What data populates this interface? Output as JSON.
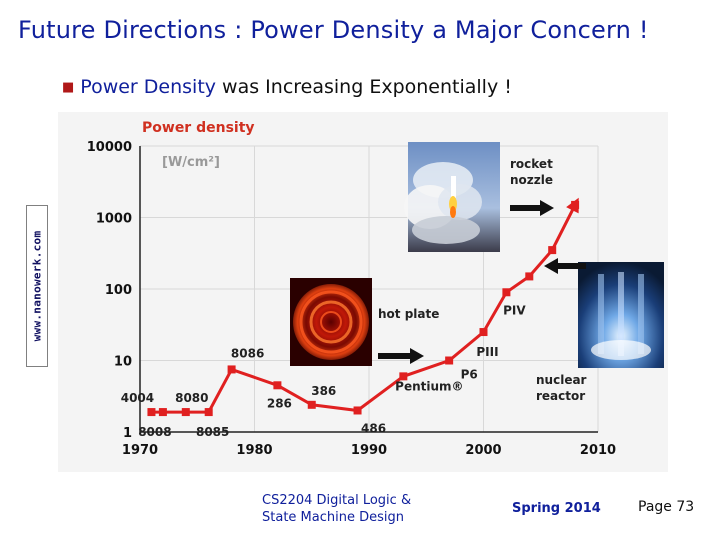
{
  "slide": {
    "title": "Future Directions : Power Density a Major Concern !",
    "bullet": {
      "prefix": "Power Density",
      "rest": " was Increasing Exponentially !"
    },
    "source_watermark": "www.nanowerk.com",
    "footer": {
      "course_line1": "CS2204 Digital Logic &",
      "course_line2": "State Machine Design",
      "term": "Spring 2014",
      "page": "Page 73"
    }
  },
  "chart_data": {
    "type": "line",
    "title": "Power density",
    "ylabel": "[W/cm²]",
    "xlabel": "",
    "y_scale": "log",
    "ylim": [
      1,
      10000
    ],
    "xlim": [
      1970,
      2010
    ],
    "x_ticks": [
      "1970",
      "1980",
      "1990",
      "2000",
      "2010"
    ],
    "y_ticks": [
      "1",
      "10",
      "100",
      "1000",
      "10000"
    ],
    "series": [
      {
        "name": "Processors",
        "points": [
          {
            "x": 1971,
            "y": 1.9,
            "label": "4004"
          },
          {
            "x": 1972,
            "y": 1.9,
            "label": "8008"
          },
          {
            "x": 1974,
            "y": 1.9,
            "label": "8080"
          },
          {
            "x": 1976,
            "y": 1.9,
            "label": "8085"
          },
          {
            "x": 1978,
            "y": 7.5,
            "label": "8086"
          },
          {
            "x": 1982,
            "y": 4.5,
            "label": "286"
          },
          {
            "x": 1985,
            "y": 2.4,
            "label": "386"
          },
          {
            "x": 1989,
            "y": 2.0,
            "label": "486"
          },
          {
            "x": 1993,
            "y": 6.0,
            "label": "Pentium®"
          },
          {
            "x": 1997,
            "y": 10,
            "label": "P6"
          },
          {
            "x": 2000,
            "y": 25,
            "label": "PIII"
          },
          {
            "x": 2002,
            "y": 90,
            "label": "PIV"
          },
          {
            "x": 2004,
            "y": 150,
            "label": ""
          },
          {
            "x": 2006,
            "y": 350,
            "label": ""
          },
          {
            "x": 2008,
            "y": 1500,
            "label": ""
          }
        ]
      }
    ],
    "annotations": [
      {
        "text": "rocket",
        "icon": "rocket-photo"
      },
      {
        "text": "nozzle",
        "icon": "rocket-photo"
      },
      {
        "text": "hot plate",
        "icon": "hot-plate-photo"
      },
      {
        "text": "nuclear",
        "icon": "reactor-photo"
      },
      {
        "text": "reactor",
        "icon": "reactor-photo"
      }
    ],
    "colors": {
      "line": "#e02020",
      "title": "#d03020",
      "axis": "#222222",
      "grid": "#d8d8d8",
      "plot_bg": "#f4f4f4"
    }
  }
}
